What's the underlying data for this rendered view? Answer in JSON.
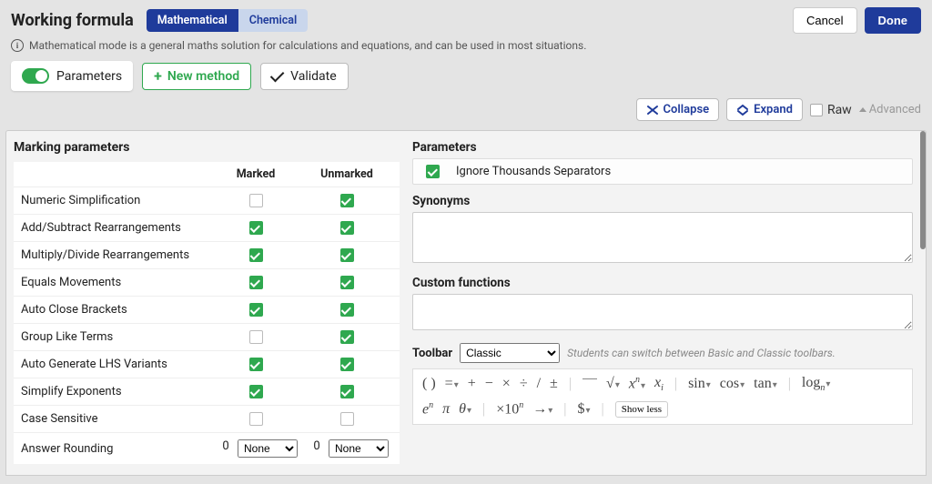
{
  "header": {
    "title": "Working formula",
    "tabs": {
      "math": "Mathematical",
      "chem": "Chemical"
    },
    "cancel": "Cancel",
    "done": "Done"
  },
  "info": {
    "text": "Mathematical mode is a general maths solution for calculations and equations, and can be used in most situations."
  },
  "row2": {
    "parameters": "Parameters",
    "new_method": "New method",
    "validate": "Validate"
  },
  "row3": {
    "collapse": "Collapse",
    "expand": "Expand",
    "raw": "Raw",
    "advanced": "Advanced"
  },
  "marking": {
    "title": "Marking parameters",
    "col_marked": "Marked",
    "col_unmarked": "Unmarked",
    "rows": [
      {
        "label": "Numeric Simplification",
        "marked": false,
        "unmarked": true
      },
      {
        "label": "Add/Subtract Rearrangements",
        "marked": true,
        "unmarked": true
      },
      {
        "label": "Multiply/Divide Rearrangements",
        "marked": true,
        "unmarked": true
      },
      {
        "label": "Equals Movements",
        "marked": true,
        "unmarked": true
      },
      {
        "label": "Auto Close Brackets",
        "marked": true,
        "unmarked": true
      },
      {
        "label": "Group Like Terms",
        "marked": false,
        "unmarked": true
      },
      {
        "label": "Auto Generate LHS Variants",
        "marked": true,
        "unmarked": true
      },
      {
        "label": "Simplify Exponents",
        "marked": true,
        "unmarked": true
      },
      {
        "label": "Case Sensitive",
        "marked": false,
        "unmarked": false
      }
    ],
    "rounding": {
      "label": "Answer Rounding",
      "marked_value": "0",
      "marked_select": "None",
      "unmarked_value": "0",
      "unmarked_select": "None"
    }
  },
  "right": {
    "parameters_label": "Parameters",
    "ignore_thousands": "Ignore Thousands Separators",
    "synonyms_label": "Synonyms",
    "custom_label": "Custom functions",
    "toolbar_label": "Toolbar",
    "toolbar_select": "Classic",
    "toolbar_hint": "Students can switch between Basic and Classic toolbars.",
    "showless": "Show less",
    "math": {
      "paren": "( )",
      "eq": "=",
      "plus": "+",
      "minus": "−",
      "times": "×",
      "div": "÷",
      "slash": "/",
      "pm": "±",
      "sqrt": "√",
      "xn": "x",
      "xn_sup": "n",
      "xi": "x",
      "xi_sub": "i",
      "sin": "sin",
      "cos": "cos",
      "tan": "tan",
      "log": "log",
      "log_sub": "n",
      "en": "e",
      "en_sup": "n",
      "pi": "π",
      "theta": "θ",
      "times10n": "×10",
      "times10n_sup": "n",
      "arrow": "→",
      "dollar": "$"
    }
  },
  "colors": {
    "primary": "#1f3b9b",
    "green": "#2fa84f",
    "panel_bg": "#f3f3f3",
    "page_bg": "#e4e4e4"
  }
}
